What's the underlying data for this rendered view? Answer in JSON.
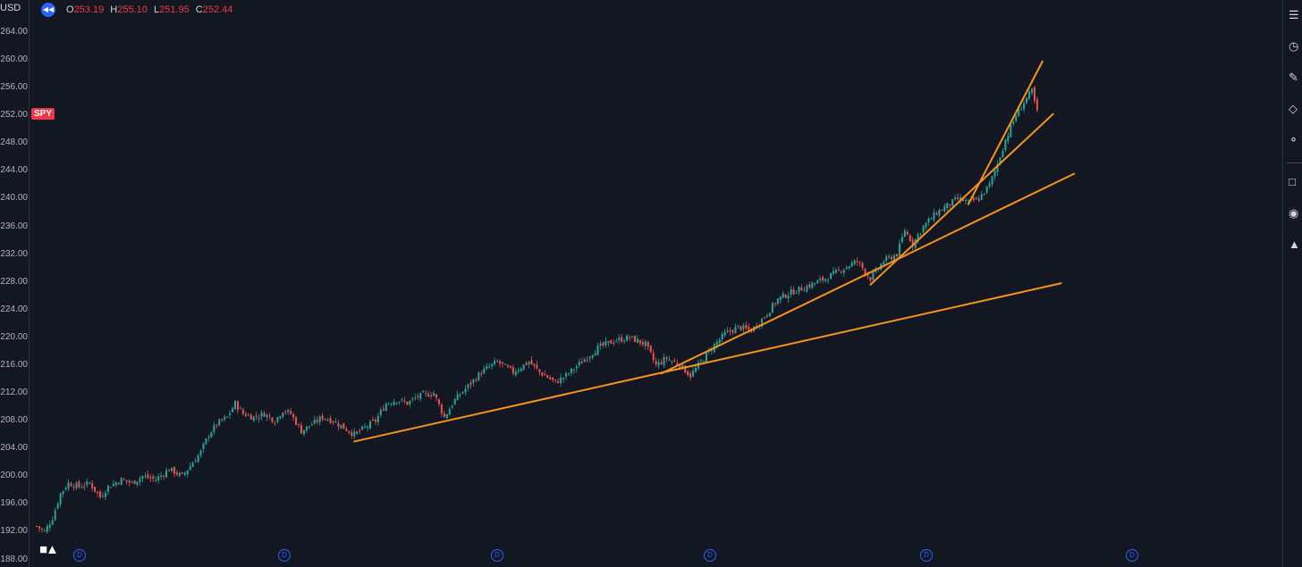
{
  "symbol": {
    "partial_label": "USD",
    "tag": "SPY"
  },
  "legend": {
    "o_label": "O",
    "o_value": "253.19",
    "h_label": "H",
    "h_value": "255.10",
    "l_label": "L",
    "l_value": "251.95",
    "c_label": "C",
    "c_value": "252.44"
  },
  "toolbar": {
    "icons": [
      "watchlist-icon",
      "clock-icon",
      "add-note-icon",
      "layers-icon",
      "lightbulb-icon",
      "chat-icon",
      "broadcast-icon",
      "alert-bell-icon"
    ]
  },
  "marker_label": "D",
  "colors": {
    "background": "#131722",
    "up": "#26a69a",
    "down": "#ef5350",
    "trendline": "#f7931a",
    "accent": "#2962ff",
    "price_tag": "#f23645"
  },
  "chart_data": {
    "type": "candlestick",
    "title": "",
    "series": [
      {
        "name": "SPY",
        "ohlc": []
      }
    ],
    "y_ticks": [
      "264.00",
      "260.00",
      "256.00",
      "252.00",
      "248.00",
      "244.00",
      "240.00",
      "236.00",
      "232.00",
      "228.00",
      "224.00",
      "220.00",
      "216.00",
      "212.00",
      "208.00",
      "204.00",
      "200.00",
      "196.00",
      "192.00",
      "188.00"
    ],
    "ylim": [
      188,
      266
    ],
    "close_path_bars": [
      [
        0,
        192.8
      ],
      [
        3,
        192.0
      ],
      [
        6,
        194.0
      ],
      [
        9,
        197.5
      ],
      [
        12,
        199.0
      ],
      [
        16,
        198.5
      ],
      [
        20,
        199.0
      ],
      [
        24,
        197.0
      ],
      [
        27,
        198.5
      ],
      [
        32,
        199.5
      ],
      [
        36,
        199.0
      ],
      [
        40,
        200.0
      ],
      [
        45,
        199.5
      ],
      [
        50,
        201.0
      ],
      [
        55,
        200.0
      ],
      [
        58,
        201.5
      ],
      [
        62,
        203.5
      ],
      [
        65,
        206.0
      ],
      [
        68,
        207.5
      ],
      [
        72,
        208.5
      ],
      [
        75,
        210.5
      ],
      [
        78,
        209.0
      ],
      [
        82,
        208.5
      ],
      [
        86,
        209.0
      ],
      [
        90,
        208.0
      ],
      [
        93,
        209.5
      ],
      [
        96,
        209.0
      ],
      [
        100,
        206.5
      ],
      [
        104,
        207.5
      ],
      [
        108,
        208.5
      ],
      [
        112,
        208.0
      ],
      [
        116,
        207.0
      ],
      [
        120,
        206.0
      ],
      [
        124,
        207.0
      ],
      [
        128,
        208.0
      ],
      [
        132,
        210.5
      ],
      [
        136,
        211.0
      ],
      [
        140,
        210.5
      ],
      [
        144,
        211.5
      ],
      [
        150,
        212.0
      ],
      [
        154,
        208.5
      ],
      [
        158,
        211.0
      ],
      [
        163,
        213.0
      ],
      [
        168,
        215.0
      ],
      [
        174,
        216.5
      ],
      [
        180,
        215.0
      ],
      [
        186,
        216.5
      ],
      [
        190,
        215.0
      ],
      [
        196,
        213.5
      ],
      [
        200,
        214.5
      ],
      [
        206,
        216.5
      ],
      [
        212,
        218.5
      ],
      [
        218,
        219.5
      ],
      [
        224,
        220.0
      ],
      [
        230,
        219.0
      ],
      [
        234,
        216.0
      ],
      [
        238,
        217.0
      ],
      [
        243,
        216.0
      ],
      [
        247,
        214.5
      ],
      [
        250,
        216.0
      ],
      [
        255,
        218.5
      ],
      [
        260,
        220.5
      ],
      [
        265,
        221.5
      ],
      [
        270,
        221.0
      ],
      [
        275,
        223.0
      ],
      [
        280,
        225.5
      ],
      [
        285,
        226.5
      ],
      [
        292,
        227.5
      ],
      [
        298,
        228.5
      ],
      [
        305,
        230.0
      ],
      [
        310,
        231.0
      ],
      [
        315,
        228.5
      ],
      [
        320,
        231.0
      ],
      [
        325,
        232.0
      ],
      [
        328,
        235.5
      ],
      [
        331,
        233.5
      ],
      [
        335,
        236.0
      ],
      [
        340,
        238.0
      ],
      [
        344,
        239.0
      ],
      [
        348,
        240.0
      ],
      [
        352,
        239.5
      ],
      [
        356,
        240.0
      ],
      [
        360,
        242.0
      ],
      [
        363,
        245.0
      ],
      [
        366,
        248.5
      ],
      [
        370,
        252.0
      ],
      [
        374,
        254.5
      ],
      [
        376,
        255.5
      ],
      [
        378,
        252.4
      ]
    ],
    "trendlines": [
      {
        "from": [
          120,
          205.0
        ],
        "to": [
          387,
          227.8
        ]
      },
      {
        "from": [
          236,
          214.8
        ],
        "to": [
          392,
          243.6
        ]
      },
      {
        "from": [
          315,
          227.6
        ],
        "to": [
          384,
          252.2
        ]
      },
      {
        "from": [
          352,
          239.2
        ],
        "to": [
          380,
          259.8
        ]
      }
    ],
    "grid": false
  }
}
